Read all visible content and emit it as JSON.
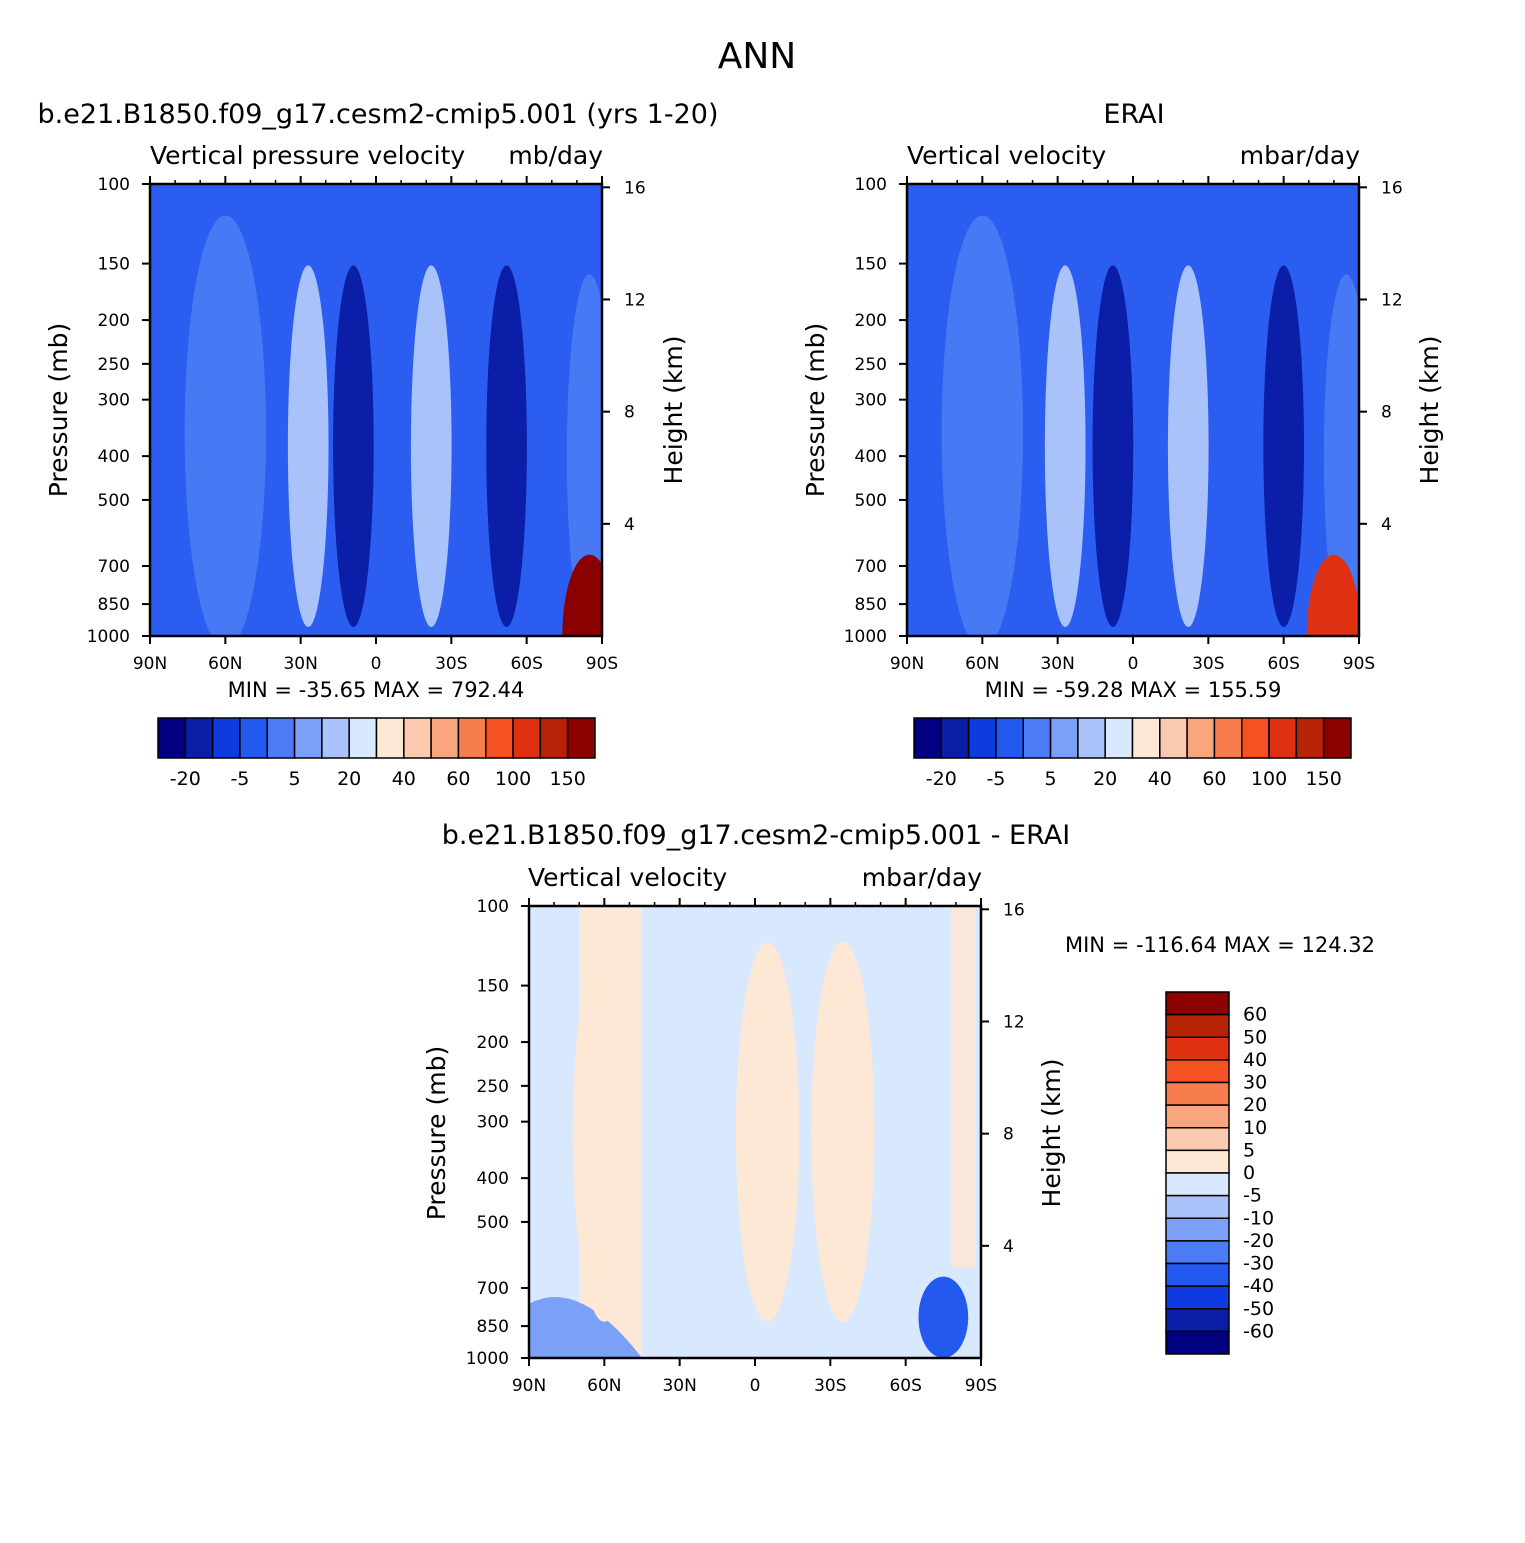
{
  "page_title": "ANN",
  "colors": {
    "anomaly_fill_left": [
      "#000080",
      "#0a1ea8",
      "#0d3be0",
      "#2459f0",
      "#4b7cf5",
      "#7aa0f7",
      "#a9c3fa",
      "#d8e8ff"
    ],
    "anomaly_fill_right": [
      "#fde8d6",
      "#fbc9ad",
      "#f9a57e",
      "#f77c4e",
      "#f45223",
      "#e03012",
      "#b82207",
      "#8b0000"
    ],
    "panel_background": "#2b5ef0",
    "difference_background": "#d8e8ff"
  },
  "panels": [
    {
      "title": "b.e21.B1850.f09_g17.cesm2-cmip5.001 (yrs 1-20)",
      "variable": "Vertical pressure velocity",
      "units": "mb/day",
      "ylabel": "Pressure (mb)",
      "ylabel_right": "Height (km)",
      "stats": "MIN = -35.65   MAX = 792.44",
      "colorbar_labels": [
        "-20",
        "-5",
        "5",
        "20",
        "40",
        "60",
        "100",
        "150"
      ]
    },
    {
      "title": "ERAI",
      "variable": "Vertical velocity",
      "units": "mbar/day",
      "ylabel": "Pressure (mb)",
      "ylabel_right": "Height (km)",
      "stats": "MIN = -59.28   MAX = 155.59",
      "colorbar_labels": [
        "-20",
        "-5",
        "5",
        "20",
        "40",
        "60",
        "100",
        "150"
      ]
    },
    {
      "title": "b.e21.B1850.f09_g17.cesm2-cmip5.001 - ERAI",
      "variable": "Vertical velocity",
      "units": "mbar/day",
      "ylabel": "Pressure (mb)",
      "ylabel_right": "Height (km)",
      "stats": "MIN = -116.64   MAX = 124.32",
      "colorbar_labels": [
        "60",
        "50",
        "40",
        "30",
        "20",
        "10",
        "5",
        "0",
        "-5",
        "-10",
        "-20",
        "-30",
        "-40",
        "-50",
        "-60"
      ]
    }
  ],
  "chart_data": [
    {
      "type": "heatmap",
      "title": "b.e21.B1850.f09_g17.cesm2-cmip5.001 (yrs 1-20)",
      "x_ticks": [
        "90N",
        "60N",
        "30N",
        "0",
        "30S",
        "60S",
        "90S"
      ],
      "y_ticks": [
        100,
        150,
        200,
        250,
        300,
        400,
        500,
        700,
        850,
        1000
      ],
      "y_right_ticks": [
        16,
        12,
        8,
        4
      ],
      "ylim": [
        1000,
        100
      ],
      "y_scale": "log",
      "features": [
        {
          "lat": 9,
          "value": -20
        },
        {
          "lat": -52,
          "value": -20
        },
        {
          "lat": 27,
          "value": 10
        },
        {
          "lat": -22,
          "value": 10
        },
        {
          "lat": -85,
          "value": 150
        }
      ]
    },
    {
      "type": "heatmap",
      "title": "ERAI",
      "x_ticks": [
        "90N",
        "60N",
        "30N",
        "0",
        "30S",
        "60S",
        "90S"
      ],
      "y_ticks": [
        100,
        150,
        200,
        250,
        300,
        400,
        500,
        700,
        850,
        1000
      ],
      "y_right_ticks": [
        16,
        12,
        8,
        4
      ],
      "ylim": [
        1000,
        100
      ],
      "y_scale": "log",
      "features": [
        {
          "lat": 8,
          "value": -20
        },
        {
          "lat": -60,
          "value": -20
        },
        {
          "lat": 27,
          "value": 10
        },
        {
          "lat": -22,
          "value": 10
        },
        {
          "lat": -80,
          "value": 100
        }
      ]
    },
    {
      "type": "heatmap",
      "title": "b.e21.B1850.f09_g17.cesm2-cmip5.001 - ERAI",
      "x_ticks": [
        "90N",
        "60N",
        "30N",
        "0",
        "30S",
        "60S",
        "90S"
      ],
      "y_ticks": [
        100,
        150,
        200,
        250,
        300,
        400,
        500,
        700,
        850,
        1000
      ],
      "y_right_ticks": [
        16,
        12,
        8,
        4
      ],
      "ylim": [
        1000,
        100
      ],
      "y_scale": "log",
      "features": [
        {
          "lat": 60,
          "value": 3
        },
        {
          "lat": -5,
          "value": 3
        },
        {
          "lat": -35,
          "value": 3
        },
        {
          "lat": -75,
          "value": -40
        }
      ]
    }
  ]
}
